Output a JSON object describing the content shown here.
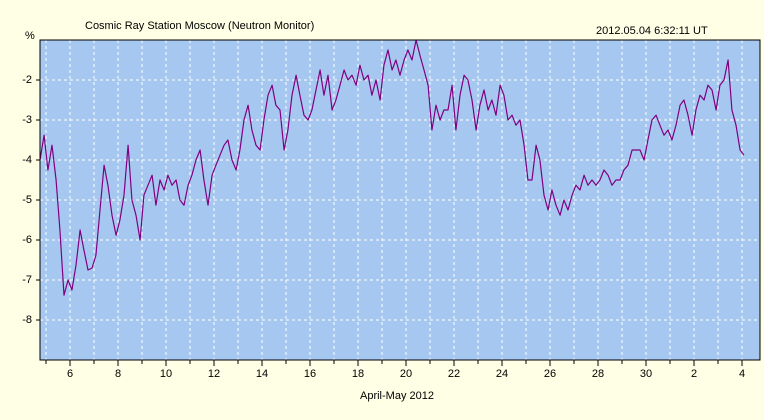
{
  "chart_data": {
    "type": "line",
    "title": "Cosmic Ray Station Moscow (Neutron Monitor)",
    "timestamp": "2012.05.04 6:32:11 UT",
    "ylabel": "%",
    "xlabel": "April-May 2012",
    "color": "#800080",
    "grid": true,
    "xlim": [
      4.75,
      34.75
    ],
    "ylim": [
      -9,
      -1
    ],
    "yticks": [
      -2,
      -3,
      -4,
      -5,
      -6,
      -7,
      -8
    ],
    "xticks": [
      6,
      8,
      10,
      12,
      14,
      16,
      18,
      20,
      22,
      24,
      26,
      28,
      30,
      {
        "value": 32,
        "label": "2"
      },
      {
        "value": 34,
        "label": "4"
      }
    ],
    "xminorticks": [
      5,
      7,
      9,
      11,
      13,
      15,
      17,
      19,
      21,
      23,
      25,
      27,
      29,
      31,
      33
    ],
    "x": [
      4.75,
      4.92,
      5.08,
      5.25,
      5.42,
      5.58,
      5.75,
      5.92,
      6.08,
      6.25,
      6.42,
      6.58,
      6.75,
      6.92,
      7.08,
      7.25,
      7.42,
      7.58,
      7.75,
      7.92,
      8.08,
      8.25,
      8.42,
      8.58,
      8.75,
      8.92,
      9.08,
      9.25,
      9.42,
      9.58,
      9.75,
      9.92,
      10.08,
      10.25,
      10.42,
      10.58,
      10.75,
      10.92,
      11.08,
      11.25,
      11.42,
      11.58,
      11.75,
      11.92,
      12.08,
      12.25,
      12.42,
      12.58,
      12.75,
      12.92,
      13.08,
      13.25,
      13.42,
      13.58,
      13.75,
      13.92,
      14.08,
      14.25,
      14.42,
      14.58,
      14.75,
      14.92,
      15.08,
      15.25,
      15.42,
      15.58,
      15.75,
      15.92,
      16.08,
      16.25,
      16.42,
      16.58,
      16.75,
      16.92,
      17.08,
      17.25,
      17.42,
      17.58,
      17.75,
      17.92,
      18.08,
      18.25,
      18.42,
      18.58,
      18.75,
      18.92,
      19.08,
      19.25,
      19.42,
      19.58,
      19.75,
      19.92,
      20.08,
      20.25,
      20.42,
      20.58,
      20.75,
      20.92,
      21.08,
      21.25,
      21.42,
      21.58,
      21.75,
      21.92,
      22.08,
      22.25,
      22.42,
      22.58,
      22.75,
      22.92,
      23.08,
      23.25,
      23.42,
      23.58,
      23.75,
      23.92,
      24.08,
      24.25,
      24.42,
      24.58,
      24.75,
      24.92,
      25.08,
      25.25,
      25.42,
      25.58,
      25.75,
      25.92,
      26.08,
      26.25,
      26.42,
      26.58,
      26.75,
      26.92,
      27.08,
      27.25,
      27.42,
      27.58,
      27.75,
      27.92,
      28.08,
      28.25,
      28.42,
      28.58,
      28.75,
      28.92,
      29.08,
      29.25,
      29.42,
      29.58,
      29.75,
      29.92,
      30.08,
      30.25,
      30.42,
      30.58,
      30.75,
      30.92,
      31.08,
      31.25,
      31.42,
      31.58,
      31.75,
      31.92,
      32.08,
      32.25,
      32.42,
      32.58,
      32.75,
      32.92,
      33.08,
      33.25,
      33.42,
      33.58,
      33.75,
      33.92,
      34.08
    ],
    "values": [
      -4,
      -3.38,
      -4.25,
      -3.63,
      -4.5,
      -5.75,
      -7.38,
      -7,
      -7.25,
      -6.63,
      -5.75,
      -6.25,
      -6.75,
      -6.7,
      -6.38,
      -5.25,
      -4.13,
      -4.63,
      -5.38,
      -5.88,
      -5.5,
      -4.88,
      -3.63,
      -5,
      -5.38,
      -6,
      -4.88,
      -4.63,
      -4.38,
      -5.13,
      -4.5,
      -4.75,
      -4.38,
      -4.63,
      -4.5,
      -5,
      -5.13,
      -4.63,
      -4.38,
      -4,
      -3.75,
      -4.5,
      -5.13,
      -4.38,
      -4.13,
      -3.88,
      -3.63,
      -3.5,
      -4,
      -4.25,
      -3.75,
      -3,
      -2.63,
      -3.25,
      -3.63,
      -3.75,
      -3,
      -2.38,
      -2.13,
      -2.63,
      -2.75,
      -3.75,
      -3.25,
      -2.38,
      -1.88,
      -2.38,
      -2.88,
      -3,
      -2.75,
      -2.25,
      -1.75,
      -2.38,
      -1.88,
      -2.75,
      -2.5,
      -2.13,
      -1.75,
      -2,
      -1.88,
      -2.13,
      -1.63,
      -2,
      -1.88,
      -2.38,
      -2,
      -2.5,
      -1.63,
      -1.25,
      -1.75,
      -1.5,
      -1.88,
      -1.5,
      -1.25,
      -1.5,
      -1,
      -1.38,
      -1.75,
      -2.13,
      -3.25,
      -2.63,
      -3,
      -2.75,
      -2.75,
      -2.13,
      -3.25,
      -2.38,
      -1.88,
      -2,
      -2.5,
      -3.25,
      -2.63,
      -2.25,
      -2.75,
      -2.5,
      -2.88,
      -2.13,
      -2.38,
      -3,
      -2.88,
      -3.13,
      -3,
      -3.63,
      -4.5,
      -4.5,
      -3.63,
      -4,
      -4.88,
      -5.25,
      -4.75,
      -5.13,
      -5.38,
      -5,
      -5.25,
      -4.88,
      -4.63,
      -4.75,
      -4.38,
      -4.63,
      -4.5,
      -4.63,
      -4.5,
      -4.25,
      -4.38,
      -4.63,
      -4.5,
      -4.5,
      -4.25,
      -4.13,
      -3.75,
      -3.75,
      -3.75,
      -4,
      -3.5,
      -3,
      -2.88,
      -3.13,
      -3.38,
      -3.25,
      -3.5,
      -3.13,
      -2.63,
      -2.5,
      -2.88,
      -3.38,
      -2.75,
      -2.38,
      -2.5,
      -2.13,
      -2.25,
      -2.75,
      -2.13,
      -2,
      -1.5,
      -2.75,
      -3.13,
      -3.75,
      -3.88
    ]
  }
}
